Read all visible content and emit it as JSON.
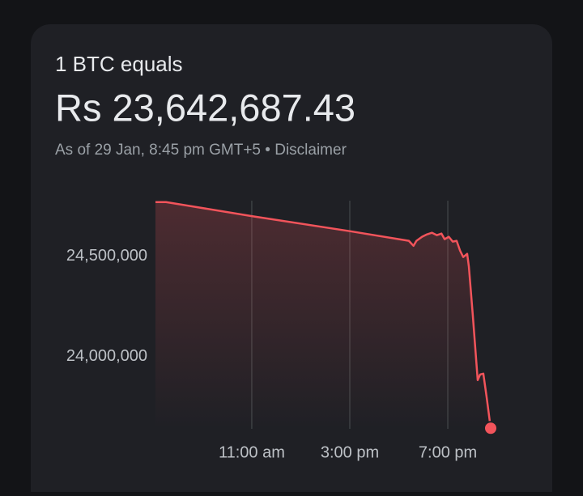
{
  "header": {
    "title": "1 BTC equals",
    "price": "Rs 23,642,687.43",
    "as_of": "As of 29 Jan, 8:45 pm GMT+5",
    "separator": "•",
    "disclaimer": "Disclaimer"
  },
  "chart_data": {
    "type": "line",
    "x": [
      7.07,
      7.5,
      11,
      15,
      17.41,
      17.6,
      17.72,
      17.95,
      18.15,
      18.35,
      18.55,
      18.74,
      18.87,
      19.04,
      19.2,
      19.36,
      19.5,
      19.63,
      19.79,
      19.86,
      20.02,
      20.22,
      20.32,
      20.45,
      20.58,
      20.75
    ],
    "values": [
      24770000,
      24770000,
      24700000,
      24625000,
      24577000,
      24552000,
      24577000,
      24597000,
      24609000,
      24617000,
      24605000,
      24613000,
      24585000,
      24597000,
      24573000,
      24577000,
      24528000,
      24496000,
      24512000,
      24448000,
      24206000,
      23883000,
      23911000,
      23915000,
      23802000,
      23643000
    ],
    "color": "#f2545b",
    "xlim": [
      7.07,
      20.75
    ],
    "xticks": [
      {
        "value": 11,
        "label": "11:00 am"
      },
      {
        "value": 15,
        "label": "3:00 pm"
      },
      {
        "value": 19,
        "label": "7:00 pm"
      }
    ],
    "ylim": [
      23640000,
      24777000
    ],
    "yticks": [
      {
        "value": 24000000,
        "label": "24,000,000"
      },
      {
        "value": 24500000,
        "label": "24,500,000"
      }
    ],
    "grid": "x"
  }
}
